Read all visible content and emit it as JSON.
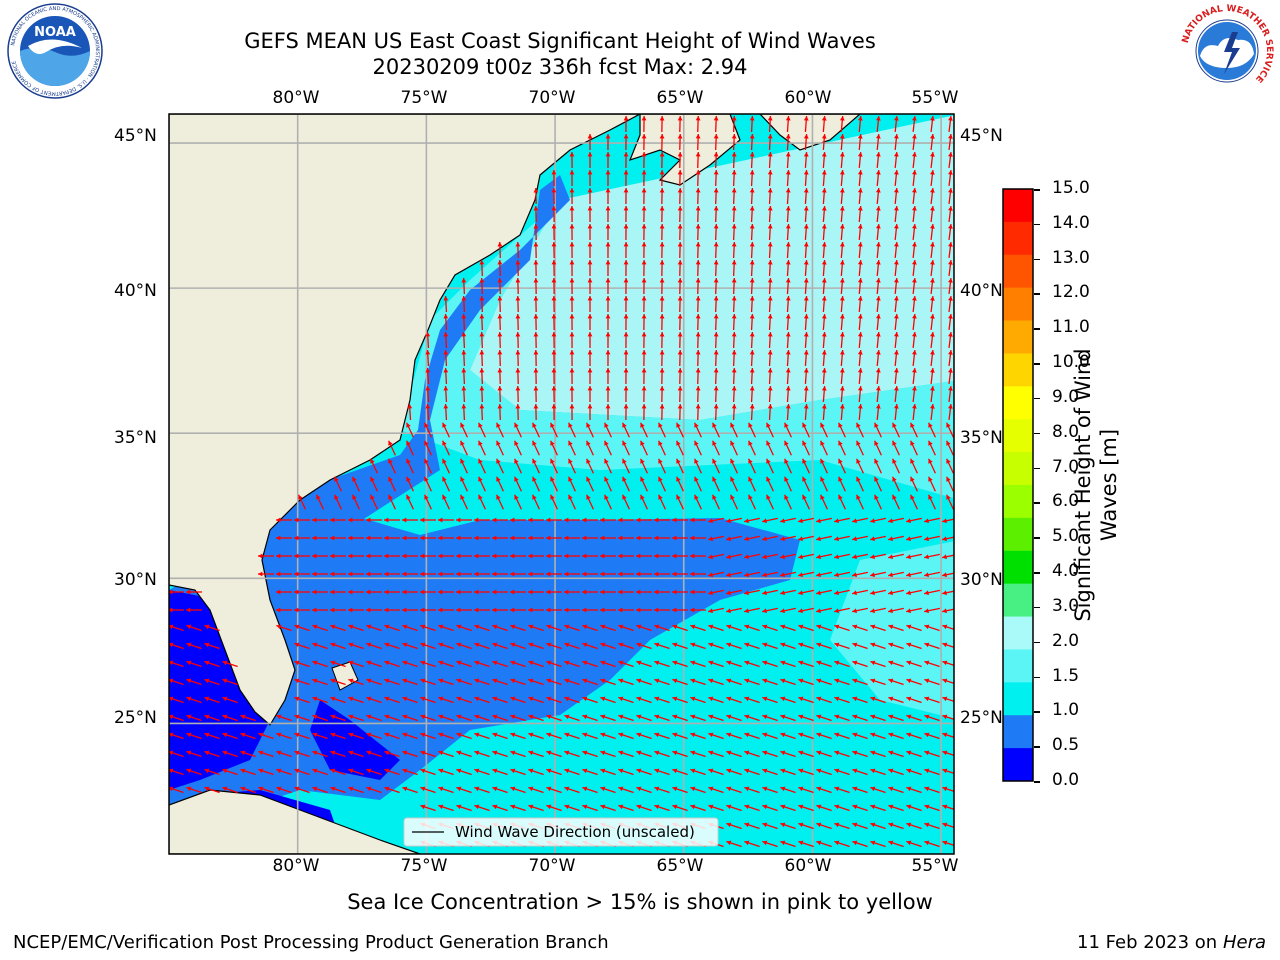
{
  "title_line1": "GEFS MEAN US East Coast Significant Height of Wind Waves",
  "title_line2": "20230209 t00z 336h fcst   Max: 2.94",
  "map": {
    "lon_ticks": [
      "80°W",
      "75°W",
      "70°W",
      "65°W",
      "60°W",
      "55°W"
    ],
    "lat_ticks": [
      "45°N",
      "40°N",
      "35°N",
      "30°N",
      "25°N"
    ],
    "lon_values": [
      -80,
      -75,
      -70,
      -65,
      -60,
      -55
    ],
    "lat_values": [
      45,
      40,
      35,
      30,
      25
    ],
    "lon_range": [
      -85,
      -54.5
    ],
    "lat_range": [
      20.5,
      46
    ],
    "legend_label": "Wind Wave Direction (unscaled)",
    "colors": {
      "land": "#efeedd",
      "ocean_low": "#0000ff",
      "ocean_mid": "#1e7bf5",
      "ocean_cyan": "#00f0f0",
      "ocean_light": "#5cf5f5",
      "ocean_pale": "#aaf5f5",
      "arrow": "#ff0000",
      "grid": "#b0b0b0"
    }
  },
  "colorbar": {
    "label_line1": "Significant Height of Wind",
    "label_line2": "Waves [m]",
    "ticks": [
      "15.0",
      "14.0",
      "13.0",
      "12.0",
      "11.0",
      "10.0",
      "9.0",
      "8.0",
      "7.0",
      "6.0",
      "5.0",
      "4.0",
      "3.0",
      "2.0",
      "1.5",
      "1.0",
      "0.5",
      "0.0"
    ],
    "bands": [
      "#ff0000",
      "#ff2a00",
      "#ff5500",
      "#ff8000",
      "#ffaa00",
      "#ffd500",
      "#ffff00",
      "#e5ff00",
      "#c8ff00",
      "#9cff00",
      "#5cf000",
      "#00e000",
      "#48f084",
      "#aafafa",
      "#5cf5f5",
      "#00f0f0",
      "#1e7bf5",
      "#0000ff"
    ]
  },
  "subtitle": "Sea Ice Concentration > 15% is shown in pink to yellow",
  "footer_left": "NCEP/EMC/Verification Post Processing Product Generation Branch",
  "footer_right_date": "11 Feb 2023 on",
  "footer_right_machine": "Hera",
  "logos": {
    "noaa": "NOAA",
    "noaa_ring": "NATIONAL OCEANIC AND ATMOSPHERIC ADMINISTRATION · U.S. DEPARTMENT OF COMMERCE",
    "nws_ring": "NATIONAL WEATHER SERVICE"
  }
}
